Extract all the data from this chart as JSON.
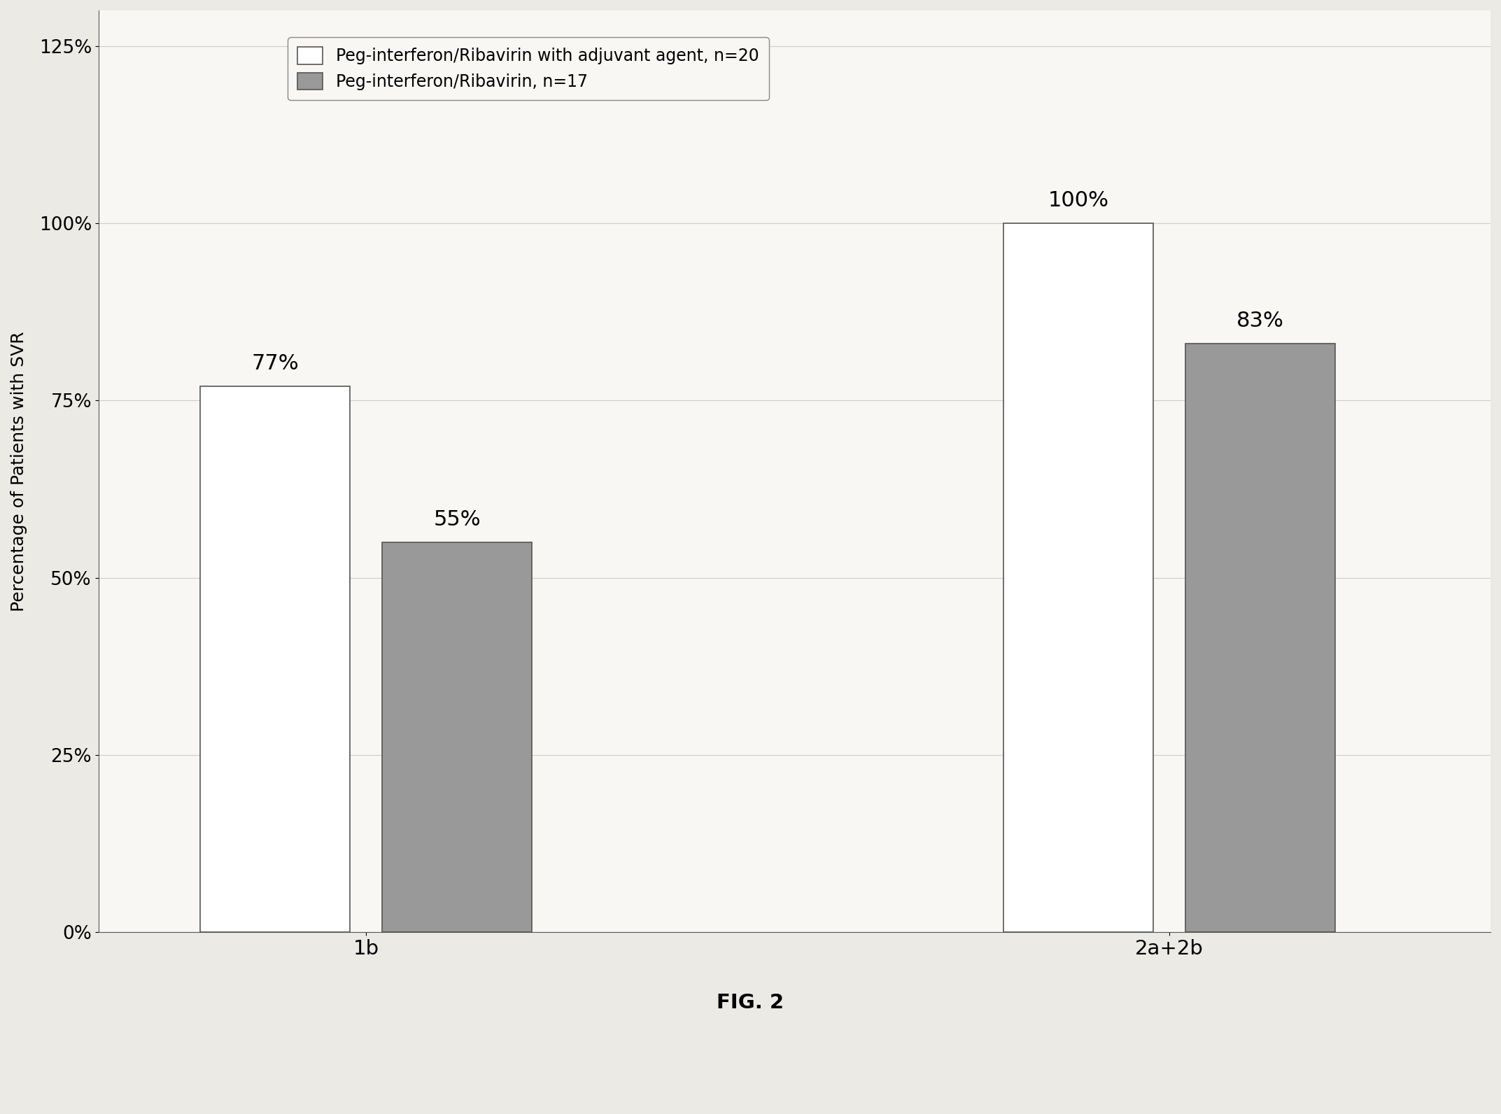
{
  "categories": [
    "1b",
    "2a+2b"
  ],
  "series1_values": [
    0.77,
    1.0
  ],
  "series2_values": [
    0.55,
    0.83
  ],
  "series1_label": "Peg-interferon/Ribavirin with adjuvant agent, n=20",
  "series2_label": "Peg-interferon/Ribavirin, n=17",
  "series1_color": "#FFFFFF",
  "series2_color": "#999999",
  "bar_edge_color": "#555555",
  "ylabel": "Percentage of Patients with SVR",
  "ylim": [
    0,
    1.3
  ],
  "yticks": [
    0.0,
    0.25,
    0.5,
    0.75,
    1.0,
    1.25
  ],
  "ytick_labels": [
    "0%",
    "25%",
    "50%",
    "75%",
    "100%",
    "125%"
  ],
  "bar_width": 0.28,
  "bar_gap": 0.06,
  "group_positions": [
    1.0,
    2.5
  ],
  "annotation_fontsize": 22,
  "label_fontsize": 18,
  "tick_fontsize": 19,
  "legend_fontsize": 17,
  "figure_caption": "FIG. 2",
  "caption_fontsize": 21,
  "background_color": "#ECEAE5",
  "plot_background_color": "#F8F7F4",
  "grid_color": "#BBBBBB"
}
